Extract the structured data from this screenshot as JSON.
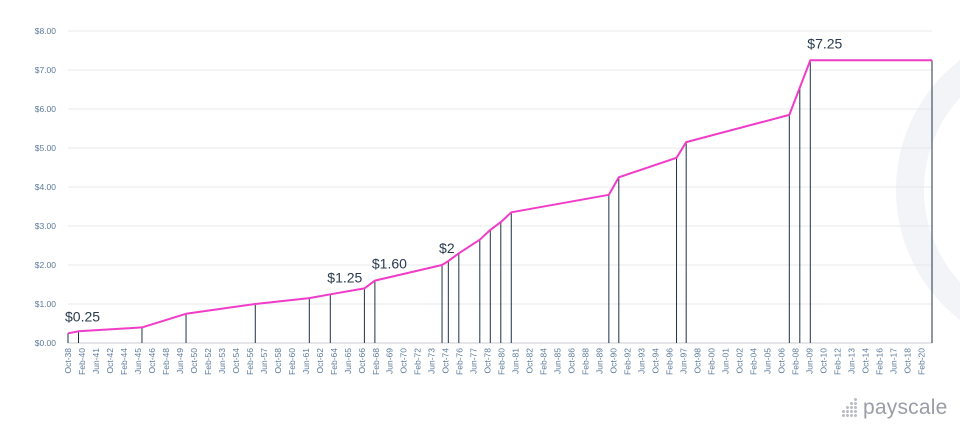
{
  "chart_data": {
    "type": "line",
    "title": "",
    "xlabel": "",
    "ylabel": "",
    "ylim": [
      0,
      8
    ],
    "xlim": [
      1938.75,
      2021.1
    ],
    "grid": true,
    "legend": "none",
    "y_ticks": [
      "$0.00",
      "$1.00",
      "$2.00",
      "$3.00",
      "$4.00",
      "$5.00",
      "$6.00",
      "$7.00",
      "$8.00"
    ],
    "x_ticks": [
      "Oct-38",
      "Feb-40",
      "Jun-41",
      "Oct-42",
      "Feb-44",
      "Jun-45",
      "Oct-46",
      "Feb-48",
      "Jun-49",
      "Oct-50",
      "Feb-52",
      "Jun-53",
      "Oct-54",
      "Feb-56",
      "Jun-57",
      "Oct-58",
      "Feb-60",
      "Jun-61",
      "Oct-62",
      "Feb-64",
      "Jun-65",
      "Oct-66",
      "Feb-68",
      "Jun-69",
      "Oct-70",
      "Feb-72",
      "Jun-73",
      "Oct-74",
      "Feb-76",
      "Jun-77",
      "Oct-78",
      "Feb-80",
      "Jun-81",
      "Oct-82",
      "Feb-84",
      "Jun-85",
      "Oct-86",
      "Feb-88",
      "Jun-89",
      "Oct-90",
      "Feb-92",
      "Jun-93",
      "Oct-94",
      "Feb-96",
      "Jun-97",
      "Oct-98",
      "Feb-00",
      "Jun-01",
      "Oct-02",
      "Feb-04",
      "Jun-05",
      "Oct-06",
      "Feb-08",
      "Jun-09",
      "Oct-10",
      "Feb-12",
      "Jun-13",
      "Oct-14",
      "Feb-16",
      "Jun-17",
      "Oct-18",
      "Feb-20"
    ],
    "x_tick_start": 1938.75,
    "x_tick_step": 1.3333,
    "series": [
      {
        "name": "",
        "color": "#f03cc8",
        "points": [
          [
            1938.75,
            0.25
          ],
          [
            1939.75,
            0.3
          ],
          [
            1945.8,
            0.4
          ],
          [
            1950.0,
            0.75
          ],
          [
            1956.6,
            1.0
          ],
          [
            1961.75,
            1.15
          ],
          [
            1963.75,
            1.25
          ],
          [
            1967.0,
            1.4
          ],
          [
            1968.0,
            1.6
          ],
          [
            1974.4,
            2.0
          ],
          [
            1975.0,
            2.1
          ],
          [
            1976.0,
            2.3
          ],
          [
            1978.0,
            2.65
          ],
          [
            1979.0,
            2.9
          ],
          [
            1980.0,
            3.1
          ],
          [
            1981.0,
            3.35
          ],
          [
            1990.3,
            3.8
          ],
          [
            1991.25,
            4.25
          ],
          [
            1996.75,
            4.75
          ],
          [
            1997.67,
            5.15
          ],
          [
            2007.5,
            5.85
          ],
          [
            2008.5,
            6.55
          ],
          [
            2009.5,
            7.25
          ],
          [
            2021.1,
            7.25
          ]
        ]
      }
    ],
    "drop_lines": [
      1938.75,
      1939.75,
      1945.8,
      1950.0,
      1956.6,
      1961.75,
      1963.75,
      1967.0,
      1968.0,
      1974.4,
      1975.0,
      1976.0,
      1978.0,
      1979.0,
      1980.0,
      1981.0,
      1990.3,
      1991.25,
      1996.75,
      1997.67,
      2007.5,
      2008.5,
      2009.5,
      2021.1
    ],
    "annotations": [
      {
        "text": "$0.25",
        "x": 1938.75,
        "y": 0.25
      },
      {
        "text": "$1.25",
        "x": 1963.75,
        "y": 1.25
      },
      {
        "text": "$1.60",
        "x": 1968.0,
        "y": 1.6
      },
      {
        "text": "$2",
        "x": 1974.4,
        "y": 2.0
      },
      {
        "text": "$7.25",
        "x": 2009.5,
        "y": 7.25
      }
    ]
  },
  "branding": {
    "logo_text": "payscale"
  }
}
